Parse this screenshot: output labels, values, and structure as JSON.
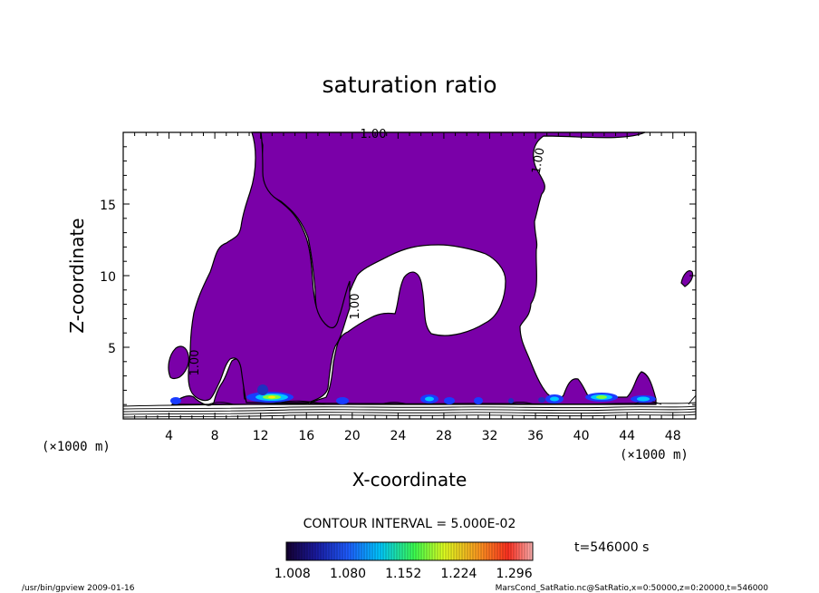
{
  "chart_data": {
    "type": "contour",
    "title": "saturation ratio",
    "xlabel": "X-coordinate",
    "ylabel": "Z-coordinate",
    "x_unit": "(×1000 m)",
    "y_unit": "(×1000 m)",
    "xlim": [
      0,
      50
    ],
    "ylim": [
      0,
      20
    ],
    "x_ticks": [
      "4",
      "8",
      "12",
      "16",
      "20",
      "24",
      "28",
      "32",
      "36",
      "40",
      "44",
      "48"
    ],
    "y_ticks": [
      "5",
      "10",
      "15"
    ],
    "contour_labels": [
      "1.00",
      "1.00",
      "1.00",
      "1.00"
    ],
    "contour_interval": "CONTOUR INTERVAL = 5.000E-02",
    "colorbar": {
      "ticks": [
        "1.008",
        "1.080",
        "1.152",
        "1.224",
        "1.296"
      ],
      "range": [
        1.0,
        1.32
      ],
      "fill_color": "#7a00a8"
    },
    "time_label": "t=546000 s",
    "footer_left": "/usr/bin/gpview  2009-01-16",
    "footer_right": "MarsCond_SatRatio.nc@SatRatio,x=0:50000,z=0:20000,t=546000"
  }
}
